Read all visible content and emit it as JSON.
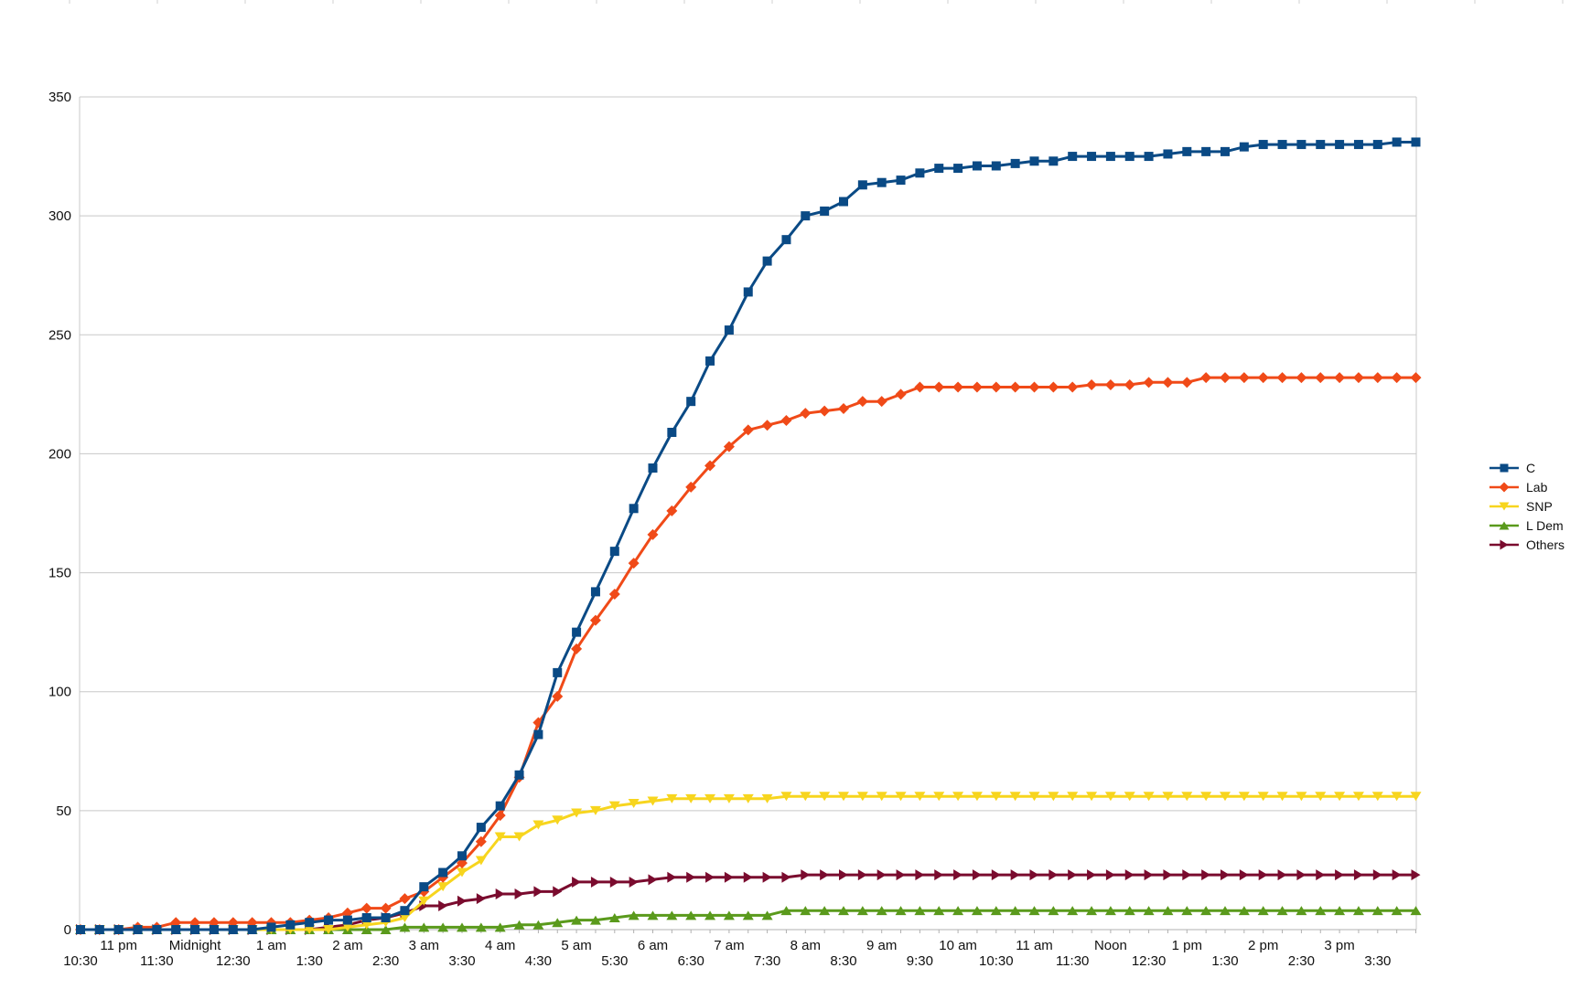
{
  "chart_data": {
    "type": "line",
    "title": "",
    "xlabel": "",
    "ylabel": "",
    "ylim": [
      0,
      350
    ],
    "yticks": [
      0,
      50,
      100,
      150,
      200,
      250,
      300,
      350
    ],
    "grid": "horizontal",
    "legend_position": "right",
    "x_interval_minutes": 15,
    "x_points": 71,
    "xtick_labels_upper": [
      {
        "index": 2,
        "label": "11 pm"
      },
      {
        "index": 6,
        "label": "Midnight"
      },
      {
        "index": 10,
        "label": "1 am"
      },
      {
        "index": 14,
        "label": "2 am"
      },
      {
        "index": 18,
        "label": "3 am"
      },
      {
        "index": 22,
        "label": "4 am"
      },
      {
        "index": 26,
        "label": "5 am"
      },
      {
        "index": 30,
        "label": "6 am"
      },
      {
        "index": 34,
        "label": "7 am"
      },
      {
        "index": 38,
        "label": "8 am"
      },
      {
        "index": 42,
        "label": "9 am"
      },
      {
        "index": 46,
        "label": "10 am"
      },
      {
        "index": 50,
        "label": "11 am"
      },
      {
        "index": 54,
        "label": "Noon"
      },
      {
        "index": 58,
        "label": "1 pm"
      },
      {
        "index": 62,
        "label": "2 pm"
      },
      {
        "index": 66,
        "label": "3 pm"
      }
    ],
    "xtick_labels_lower": [
      {
        "index": 0,
        "label": "10:30"
      },
      {
        "index": 4,
        "label": "11:30"
      },
      {
        "index": 8,
        "label": "12:30"
      },
      {
        "index": 12,
        "label": "1:30"
      },
      {
        "index": 16,
        "label": "2:30"
      },
      {
        "index": 20,
        "label": "3:30"
      },
      {
        "index": 24,
        "label": "4:30"
      },
      {
        "index": 28,
        "label": "5:30"
      },
      {
        "index": 32,
        "label": "6:30"
      },
      {
        "index": 36,
        "label": "7:30"
      },
      {
        "index": 40,
        "label": "8:30"
      },
      {
        "index": 44,
        "label": "9:30"
      },
      {
        "index": 48,
        "label": "10:30"
      },
      {
        "index": 52,
        "label": "11:30"
      },
      {
        "index": 56,
        "label": "12:30"
      },
      {
        "index": 60,
        "label": "1:30"
      },
      {
        "index": 64,
        "label": "2:30"
      },
      {
        "index": 68,
        "label": "3:30"
      }
    ],
    "series": [
      {
        "name": "C",
        "color": "#0a4a85",
        "marker": "square",
        "values": [
          0,
          0,
          0,
          0,
          0,
          0,
          0,
          0,
          0,
          0,
          1,
          2,
          3,
          4,
          4,
          5,
          5,
          8,
          18,
          24,
          31,
          43,
          52,
          65,
          82,
          108,
          125,
          142,
          159,
          177,
          194,
          209,
          222,
          239,
          252,
          268,
          281,
          290,
          300,
          302,
          306,
          313,
          314,
          315,
          318,
          320,
          320,
          321,
          321,
          322,
          323,
          323,
          325,
          325,
          325,
          325,
          325,
          326,
          327,
          327,
          327,
          329,
          330,
          330,
          330,
          330,
          330,
          330,
          330,
          331,
          331
        ]
      },
      {
        "name": "Lab",
        "color": "#f04a18",
        "marker": "diamond",
        "values": [
          0,
          0,
          0,
          1,
          1,
          3,
          3,
          3,
          3,
          3,
          3,
          3,
          4,
          5,
          7,
          9,
          9,
          13,
          16,
          22,
          28,
          37,
          48,
          64,
          87,
          98,
          118,
          130,
          141,
          154,
          166,
          176,
          186,
          195,
          203,
          210,
          212,
          214,
          217,
          218,
          219,
          222,
          222,
          225,
          228,
          228,
          228,
          228,
          228,
          228,
          228,
          228,
          228,
          229,
          229,
          229,
          230,
          230,
          230,
          232,
          232,
          232,
          232,
          232,
          232,
          232,
          232,
          232,
          232,
          232,
          232
        ]
      },
      {
        "name": "SNP",
        "color": "#f7d51e",
        "marker": "triangle-down",
        "values": [
          0,
          0,
          0,
          0,
          0,
          0,
          0,
          0,
          0,
          0,
          0,
          0,
          0,
          0,
          1,
          2,
          3,
          5,
          12,
          18,
          24,
          29,
          39,
          39,
          44,
          46,
          49,
          50,
          52,
          53,
          54,
          55,
          55,
          55,
          55,
          55,
          55,
          56,
          56,
          56,
          56,
          56,
          56,
          56,
          56,
          56,
          56,
          56,
          56,
          56,
          56,
          56,
          56,
          56,
          56,
          56,
          56,
          56,
          56,
          56,
          56,
          56,
          56,
          56,
          56,
          56,
          56,
          56,
          56,
          56,
          56
        ]
      },
      {
        "name": "L Dem",
        "color": "#5a9a1c",
        "marker": "triangle-up",
        "values": [
          0,
          0,
          0,
          0,
          0,
          0,
          0,
          0,
          0,
          0,
          0,
          0,
          0,
          0,
          0,
          0,
          0,
          1,
          1,
          1,
          1,
          1,
          1,
          2,
          2,
          3,
          4,
          4,
          5,
          6,
          6,
          6,
          6,
          6,
          6,
          6,
          6,
          8,
          8,
          8,
          8,
          8,
          8,
          8,
          8,
          8,
          8,
          8,
          8,
          8,
          8,
          8,
          8,
          8,
          8,
          8,
          8,
          8,
          8,
          8,
          8,
          8,
          8,
          8,
          8,
          8,
          8,
          8,
          8,
          8,
          8
        ]
      },
      {
        "name": "Others",
        "color": "#7a0b2e",
        "marker": "triangle-right",
        "values": [
          0,
          0,
          0,
          0,
          0,
          0,
          0,
          0,
          0,
          0,
          0,
          0,
          0,
          1,
          2,
          4,
          5,
          7,
          10,
          10,
          12,
          13,
          15,
          15,
          16,
          16,
          20,
          20,
          20,
          20,
          21,
          22,
          22,
          22,
          22,
          22,
          22,
          22,
          23,
          23,
          23,
          23,
          23,
          23,
          23,
          23,
          23,
          23,
          23,
          23,
          23,
          23,
          23,
          23,
          23,
          23,
          23,
          23,
          23,
          23,
          23,
          23,
          23,
          23,
          23,
          23,
          23,
          23,
          23,
          23,
          23
        ]
      }
    ]
  }
}
